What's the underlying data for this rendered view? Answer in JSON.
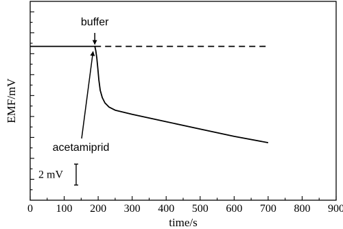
{
  "chart_data": {
    "type": "line",
    "xlabel": "time/s",
    "ylabel": "EMF/mV",
    "xlim": [
      0,
      900
    ],
    "x_ticks": [
      0,
      100,
      200,
      300,
      400,
      500,
      600,
      700,
      800,
      900
    ],
    "y_ticks_labeled": false,
    "ylim_mV": [
      0,
      19
    ],
    "grid": false,
    "legend": "none",
    "series": [
      {
        "style": "solid",
        "x": [
          0,
          190,
          193,
          196,
          199,
          202,
          206,
          212,
          220,
          232,
          250,
          300,
          400,
          500,
          600,
          700
        ],
        "y": [
          14.7,
          14.7,
          14.3,
          13.6,
          12.6,
          11.5,
          10.5,
          9.8,
          9.3,
          8.9,
          8.6,
          8.2,
          7.5,
          6.8,
          6.1,
          5.5
        ]
      },
      {
        "style": "dashed",
        "x": [
          190,
          700
        ],
        "y": [
          14.7,
          14.7
        ]
      }
    ],
    "annotations": [
      {
        "text": "buffer",
        "points_to": {
          "x": 190,
          "y": 14.7
        }
      },
      {
        "text": "acetamiprid",
        "points_to": {
          "x": 193,
          "y": 14.4
        }
      }
    ],
    "scale_bar": {
      "label": "2 mV",
      "size_mV": 2
    }
  }
}
